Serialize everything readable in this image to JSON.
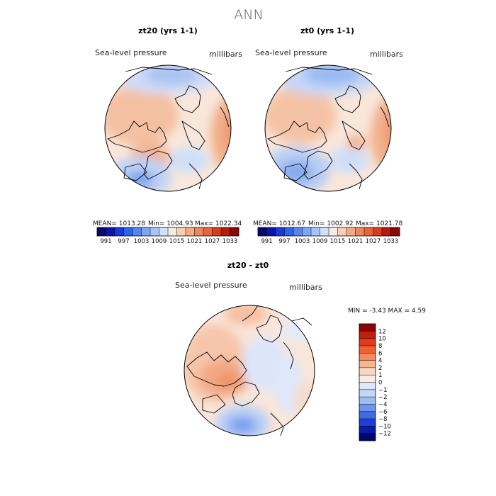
{
  "suptitle": "ANN",
  "chart_data": [
    {
      "type": "heatmap",
      "projection": "north-polar-stereographic",
      "title": "zt20 (yrs 1-1)",
      "variable": "Sea-level pressure",
      "units": "millibars",
      "stats": {
        "mean": "MEAN= 1013.28",
        "min": "Min= 1004.93",
        "max": "Max= 1022.34"
      },
      "colorbar": {
        "orientation": "horizontal",
        "tick_labels": [
          "991",
          "997",
          "1003",
          "1009",
          "1015",
          "1021",
          "1027",
          "1033"
        ],
        "colors": [
          "#08066b",
          "#0a14a6",
          "#1a3ad6",
          "#3064e6",
          "#5586ee",
          "#7ea6f4",
          "#a6c4f7",
          "#cfe0fa",
          "#f7ebe2",
          "#f7cdb4",
          "#f2aa85",
          "#ec875c",
          "#e9643c",
          "#d83e1c",
          "#b51c10",
          "#8a0505"
        ]
      }
    },
    {
      "type": "heatmap",
      "projection": "north-polar-stereographic",
      "title": "zt0 (yrs 1-1)",
      "variable": "Sea-level pressure",
      "units": "millibars",
      "stats": {
        "mean": "MEAN= 1012.67",
        "min": "Min= 1002.92",
        "max": "Max= 1021.78"
      },
      "colorbar": {
        "orientation": "horizontal",
        "tick_labels": [
          "991",
          "997",
          "1003",
          "1009",
          "1015",
          "1021",
          "1027",
          "1033"
        ],
        "colors": [
          "#08066b",
          "#0a14a6",
          "#1a3ad6",
          "#3064e6",
          "#5586ee",
          "#7ea6f4",
          "#a6c4f7",
          "#cfe0fa",
          "#f7ebe2",
          "#f7cdb4",
          "#f2aa85",
          "#ec875c",
          "#e9643c",
          "#d83e1c",
          "#b51c10",
          "#8a0505"
        ]
      }
    },
    {
      "type": "heatmap",
      "projection": "north-polar-stereographic",
      "title": "zt20 - zt0",
      "variable": "Sea-level pressure",
      "units": "millibars",
      "stats": {
        "minmax": "MIN =   -3.43 MAX =    4.59"
      },
      "colorbar": {
        "orientation": "vertical",
        "tick_labels": [
          "12",
          "10",
          "8",
          "6",
          "4",
          "2",
          "1",
          "0",
          "−1",
          "−2",
          "−4",
          "−6",
          "−8",
          "−10",
          "−12"
        ],
        "colors": [
          "#8a0505",
          "#c41e0e",
          "#e43a1a",
          "#ee6030",
          "#f58a5a",
          "#f8b591",
          "#fad6c0",
          "#fbede5",
          "#dde9fb",
          "#c2d6f7",
          "#9dbcf3",
          "#6d96ea",
          "#3d6be2",
          "#1d3fd6",
          "#0a1aa9",
          "#04046e"
        ]
      }
    }
  ]
}
